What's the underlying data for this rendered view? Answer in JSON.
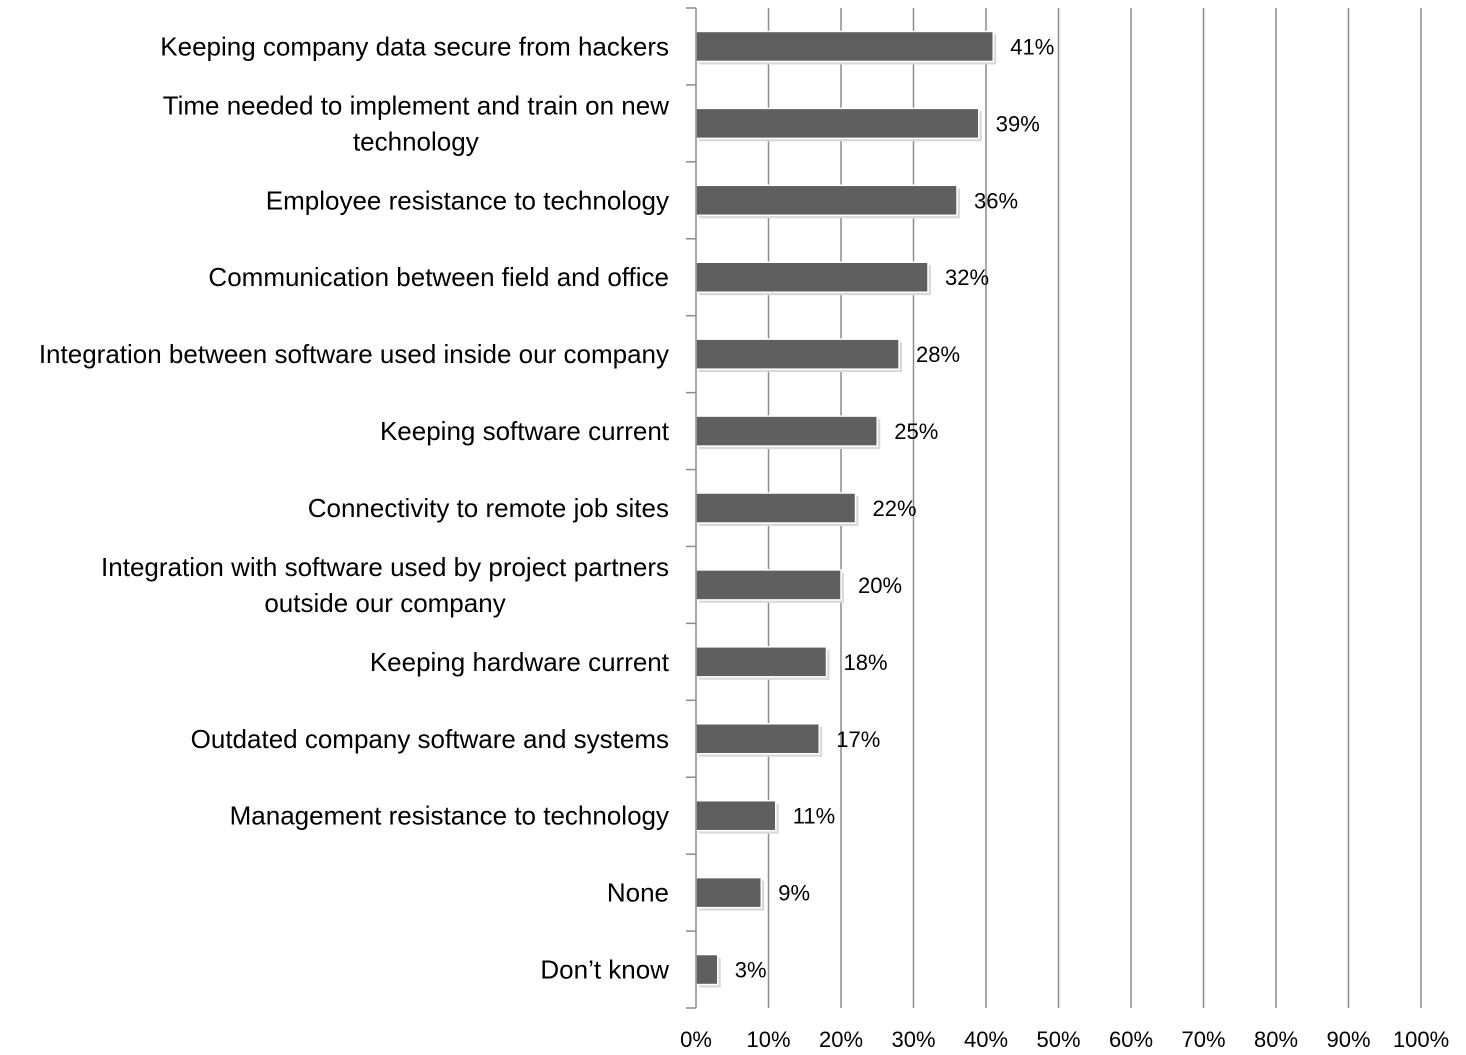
{
  "chart_data": {
    "type": "bar",
    "orientation": "horizontal",
    "title": "",
    "xlabel": "",
    "ylabel": "",
    "categories": [
      [
        "Keeping company data secure from hackers"
      ],
      [
        "Time needed to implement and train on new",
        "technology"
      ],
      [
        "Employee resistance to technology"
      ],
      [
        "Communication between field and office"
      ],
      [
        "Integration between software used inside our company"
      ],
      [
        "Keeping software current"
      ],
      [
        "Connectivity to remote job sites"
      ],
      [
        "Integration with software used by project partners",
        "outside our company"
      ],
      [
        "Keeping hardware current"
      ],
      [
        "Outdated company software and systems"
      ],
      [
        "Management resistance to technology"
      ],
      [
        "None"
      ],
      [
        "Don’t know"
      ]
    ],
    "values": [
      41,
      39,
      36,
      32,
      28,
      25,
      22,
      20,
      18,
      17,
      11,
      9,
      3
    ],
    "data_labels": [
      "41%",
      "39%",
      "36%",
      "32%",
      "28%",
      "25%",
      "22%",
      "20%",
      "18%",
      "17%",
      "11%",
      "9%",
      "3%"
    ],
    "xlim": [
      0,
      100
    ],
    "x_ticks": [
      0,
      10,
      20,
      30,
      40,
      50,
      60,
      70,
      80,
      90,
      100
    ],
    "x_tick_labels": [
      "0%",
      "10%",
      "20%",
      "30%",
      "40%",
      "50%",
      "60%",
      "70%",
      "80%",
      "90%",
      "100%"
    ],
    "grid": "vertical",
    "legend": "none",
    "colors": {
      "bar": "#5f5f5f",
      "bar_outline": "#ffffff",
      "grid": "#8c8c8c",
      "text": "#000000"
    }
  }
}
